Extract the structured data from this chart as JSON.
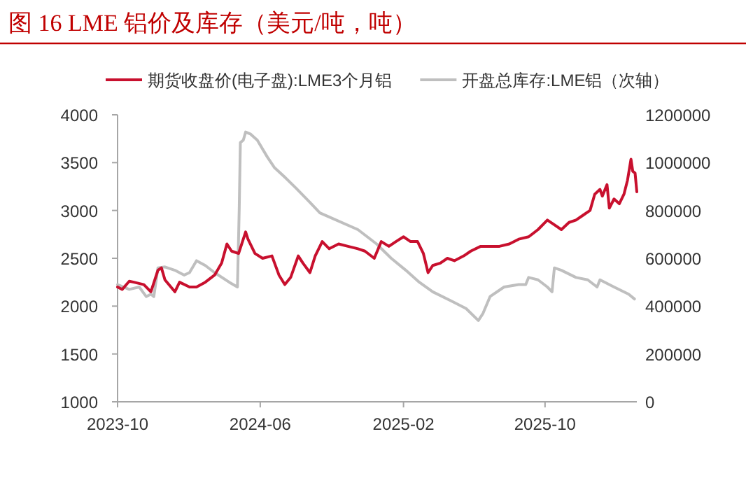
{
  "chart_data": {
    "type": "line",
    "title": "图 16 LME 铝价及库存（美元/吨，吨）",
    "legend": "top",
    "grid": false,
    "xlim": [
      "2023-10-01",
      "2026-03-07"
    ],
    "xticks": [
      "2023-10",
      "2024-06",
      "2025-02",
      "2025-10"
    ],
    "ylim": [
      1000,
      4000
    ],
    "yticks": [
      1000,
      1500,
      2000,
      2500,
      3000,
      3500,
      4000
    ],
    "y2lim": [
      0,
      1200000
    ],
    "y2ticks": [
      0,
      200000,
      400000,
      600000,
      800000,
      1000000,
      1200000
    ],
    "series": [
      {
        "name": "期货收盘价(电子盘):LME3个月铝",
        "color": "#c8102e",
        "x": [
          "2023-10-01",
          "2023-10-09",
          "2023-10-21",
          "2023-10-29",
          "2023-11-15",
          "2023-11-27",
          "2023-12-09",
          "2023-12-15",
          "2023-12-21",
          "2024-01-07",
          "2024-01-15",
          "2024-02-01",
          "2024-02-13",
          "2024-02-28",
          "2024-03-15",
          "2024-03-27",
          "2024-04-05",
          "2024-04-13",
          "2024-04-25",
          "2024-05-07",
          "2024-05-11",
          "2024-05-23",
          "2024-06-05",
          "2024-06-21",
          "2024-07-03",
          "2024-07-13",
          "2024-07-23",
          "2024-08-05",
          "2024-08-13",
          "2024-08-25",
          "2024-09-03",
          "2024-09-15",
          "2024-09-27",
          "2024-10-13",
          "2024-10-29",
          "2024-11-15",
          "2024-11-27",
          "2024-12-13",
          "2024-12-25",
          "2025-01-07",
          "2025-01-19",
          "2025-02-01",
          "2025-02-13",
          "2025-02-25",
          "2025-03-07",
          "2025-03-15",
          "2025-03-23",
          "2025-04-05",
          "2025-04-17",
          "2025-04-29",
          "2025-05-15",
          "2025-05-27",
          "2025-06-13",
          "2025-06-29",
          "2025-07-15",
          "2025-08-01",
          "2025-08-17",
          "2025-09-03",
          "2025-09-19",
          "2025-10-05",
          "2025-10-17",
          "2025-10-29",
          "2025-11-11",
          "2025-11-23",
          "2025-12-05",
          "2025-12-17",
          "2025-12-25",
          "2026-01-03",
          "2026-01-07",
          "2026-01-15",
          "2026-01-19",
          "2026-01-27",
          "2026-02-05",
          "2026-02-13",
          "2026-02-19",
          "2026-02-25",
          "2026-02-28",
          "2026-03-04",
          "2026-03-07"
        ],
        "values": [
          2200,
          2175,
          2260,
          2250,
          2225,
          2150,
          2375,
          2400,
          2275,
          2150,
          2250,
          2200,
          2200,
          2250,
          2325,
          2450,
          2650,
          2575,
          2550,
          2775,
          2700,
          2550,
          2500,
          2525,
          2325,
          2225,
          2300,
          2525,
          2450,
          2350,
          2525,
          2675,
          2600,
          2650,
          2625,
          2600,
          2575,
          2500,
          2675,
          2625,
          2675,
          2725,
          2675,
          2675,
          2550,
          2350,
          2425,
          2450,
          2500,
          2475,
          2525,
          2575,
          2625,
          2625,
          2625,
          2650,
          2700,
          2725,
          2800,
          2900,
          2850,
          2800,
          2875,
          2900,
          2950,
          3000,
          3170,
          3220,
          3150,
          3270,
          3025,
          3120,
          3070,
          3170,
          3315,
          3535,
          3410,
          3390,
          3195
        ]
      },
      {
        "name": "开盘总库存:LME铝（次轴）",
        "color": "#bfbfbf",
        "axis": "y2",
        "x": [
          "2023-10-01",
          "2023-10-21",
          "2023-11-07",
          "2023-11-19",
          "2023-11-27",
          "2023-12-02",
          "2023-12-09",
          "2023-12-21",
          "2024-01-07",
          "2024-01-23",
          "2024-02-01",
          "2024-02-13",
          "2024-02-28",
          "2024-03-15",
          "2024-04-09",
          "2024-04-23",
          "2024-04-26",
          "2024-04-28",
          "2024-05-03",
          "2024-05-07",
          "2024-05-15",
          "2024-05-27",
          "2024-06-13",
          "2024-06-25",
          "2024-07-11",
          "2024-08-01",
          "2024-08-25",
          "2024-09-11",
          "2024-11-15",
          "2024-12-17",
          "2025-01-11",
          "2025-02-05",
          "2025-02-28",
          "2025-03-23",
          "2025-04-25",
          "2025-05-19",
          "2025-06-09",
          "2025-06-17",
          "2025-06-29",
          "2025-07-23",
          "2025-08-17",
          "2025-08-29",
          "2025-09-03",
          "2025-09-19",
          "2025-10-05",
          "2025-10-13",
          "2025-10-17",
          "2025-10-29",
          "2025-11-23",
          "2025-12-13",
          "2025-12-29",
          "2026-01-03",
          "2026-01-27",
          "2026-02-21",
          "2026-03-03"
        ],
        "values": [
          490000,
          470000,
          480000,
          440000,
          450000,
          440000,
          560000,
          564000,
          550000,
          530000,
          540000,
          590000,
          570000,
          540000,
          500000,
          480000,
          800000,
          1084000,
          1094000,
          1128000,
          1120000,
          1094000,
          1024000,
          980000,
          944000,
          894000,
          834000,
          790000,
          720000,
          660000,
          600000,
          550000,
          500000,
          460000,
          420000,
          390000,
          340000,
          370000,
          440000,
          480000,
          490000,
          490000,
          520000,
          510000,
          480000,
          460000,
          560000,
          550000,
          520000,
          510000,
          480000,
          510000,
          480000,
          450000,
          430000
        ]
      }
    ]
  }
}
